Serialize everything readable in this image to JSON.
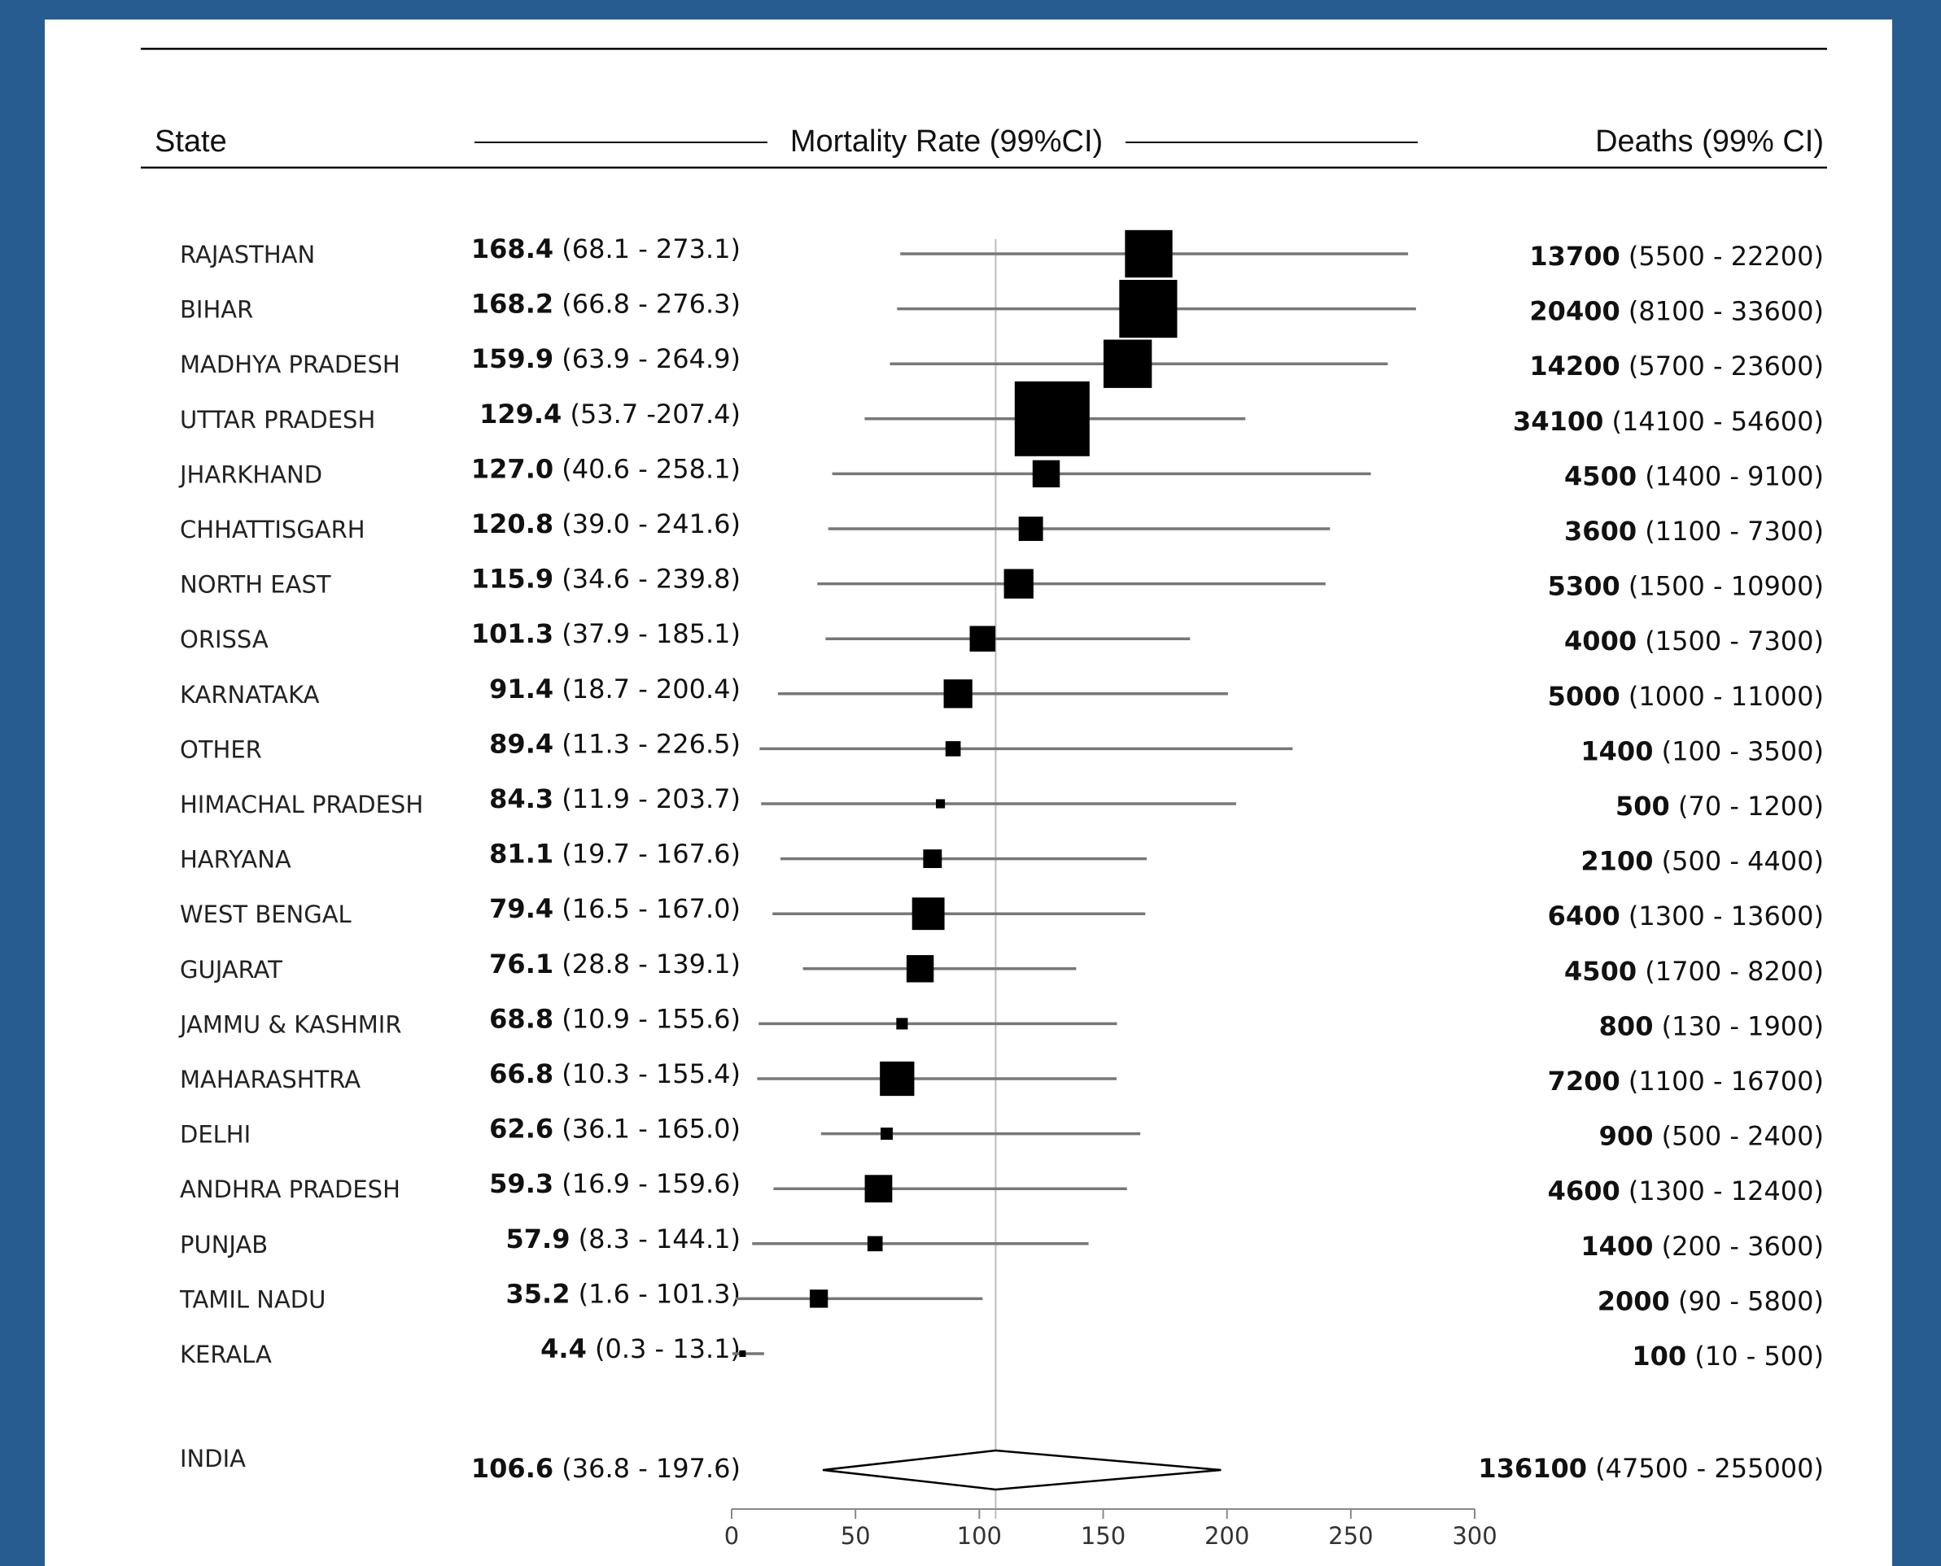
{
  "header": {
    "state_label": "State",
    "rate_label": "Mortality Rate (99%CI)",
    "deaths_label": "Deaths (99% CI)"
  },
  "colors": {
    "background": "#275c91",
    "panel": "#ffffff",
    "marker": "#000000",
    "ci_line": "#777777",
    "reference_line": "#bdbdbd"
  },
  "chart_data": {
    "type": "forest",
    "xlim": [
      0,
      300
    ],
    "xticks": [
      0,
      50,
      100,
      150,
      200,
      250,
      300
    ],
    "reference_value": 106.6,
    "rows": [
      {
        "state": "RAJASTHAN",
        "rate": 168.4,
        "rate_ci": "(68.1 - 273.1)",
        "lo": 68.1,
        "hi": 273.1,
        "deaths": 13700,
        "deaths_ci": "(5500 - 22200)"
      },
      {
        "state": "BIHAR",
        "rate": 168.2,
        "rate_ci": "(66.8 - 276.3)",
        "lo": 66.8,
        "hi": 276.3,
        "deaths": 20400,
        "deaths_ci": "(8100 - 33600)"
      },
      {
        "state": "MADHYA PRADESH",
        "rate": 159.9,
        "rate_ci": "(63.9 - 264.9)",
        "lo": 63.9,
        "hi": 264.9,
        "deaths": 14200,
        "deaths_ci": "(5700 - 23600)"
      },
      {
        "state": "UTTAR PRADESH",
        "rate": 129.4,
        "rate_ci": "(53.7 -207.4)",
        "lo": 53.7,
        "hi": 207.4,
        "deaths": 34100,
        "deaths_ci": "(14100 - 54600)"
      },
      {
        "state": "JHARKHAND",
        "rate": 127.0,
        "rate_ci": "(40.6 - 258.1)",
        "lo": 40.6,
        "hi": 258.1,
        "deaths": 4500,
        "deaths_ci": "(1400 - 9100)"
      },
      {
        "state": "CHHATTISGARH",
        "rate": 120.8,
        "rate_ci": "(39.0 - 241.6)",
        "lo": 39.0,
        "hi": 241.6,
        "deaths": 3600,
        "deaths_ci": "(1100 - 7300)"
      },
      {
        "state": "NORTH EAST",
        "rate": 115.9,
        "rate_ci": "(34.6 - 239.8)",
        "lo": 34.6,
        "hi": 239.8,
        "deaths": 5300,
        "deaths_ci": "(1500 - 10900)"
      },
      {
        "state": "ORISSA",
        "rate": 101.3,
        "rate_ci": "(37.9 - 185.1)",
        "lo": 37.9,
        "hi": 185.1,
        "deaths": 4000,
        "deaths_ci": "(1500 - 7300)"
      },
      {
        "state": "KARNATAKA",
        "rate": 91.4,
        "rate_ci": "(18.7 - 200.4)",
        "lo": 18.7,
        "hi": 200.4,
        "deaths": 5000,
        "deaths_ci": "(1000 - 11000)"
      },
      {
        "state": "OTHER",
        "rate": 89.4,
        "rate_ci": "(11.3 - 226.5)",
        "lo": 11.3,
        "hi": 226.5,
        "deaths": 1400,
        "deaths_ci": "(100 - 3500)"
      },
      {
        "state": "HIMACHAL PRADESH",
        "rate": 84.3,
        "rate_ci": "(11.9 - 203.7)",
        "lo": 11.9,
        "hi": 203.7,
        "deaths": 500,
        "deaths_ci": "(70 - 1200)"
      },
      {
        "state": "HARYANA",
        "rate": 81.1,
        "rate_ci": "(19.7 - 167.6)",
        "lo": 19.7,
        "hi": 167.6,
        "deaths": 2100,
        "deaths_ci": "(500 - 4400)"
      },
      {
        "state": "WEST BENGAL",
        "rate": 79.4,
        "rate_ci": "(16.5 - 167.0)",
        "lo": 16.5,
        "hi": 167.0,
        "deaths": 6400,
        "deaths_ci": "(1300 - 13600)"
      },
      {
        "state": "GUJARAT",
        "rate": 76.1,
        "rate_ci": "(28.8 - 139.1)",
        "lo": 28.8,
        "hi": 139.1,
        "deaths": 4500,
        "deaths_ci": "(1700 - 8200)"
      },
      {
        "state": "JAMMU & KASHMIR",
        "rate": 68.8,
        "rate_ci": "(10.9 - 155.6)",
        "lo": 10.9,
        "hi": 155.6,
        "deaths": 800,
        "deaths_ci": "(130 - 1900)"
      },
      {
        "state": "MAHARASHTRA",
        "rate": 66.8,
        "rate_ci": "(10.3 - 155.4)",
        "lo": 10.3,
        "hi": 155.4,
        "deaths": 7200,
        "deaths_ci": "(1100 - 16700)"
      },
      {
        "state": "DELHI",
        "rate": 62.6,
        "rate_ci": "(36.1 - 165.0)",
        "lo": 36.1,
        "hi": 165.0,
        "deaths": 900,
        "deaths_ci": "(500 - 2400)"
      },
      {
        "state": "ANDHRA PRADESH",
        "rate": 59.3,
        "rate_ci": "(16.9 - 159.6)",
        "lo": 16.9,
        "hi": 159.6,
        "deaths": 4600,
        "deaths_ci": "(1300 - 12400)"
      },
      {
        "state": "PUNJAB",
        "rate": 57.9,
        "rate_ci": "(8.3 - 144.1)",
        "lo": 8.3,
        "hi": 144.1,
        "deaths": 1400,
        "deaths_ci": "(200 - 3600)"
      },
      {
        "state": "TAMIL NADU",
        "rate": 35.2,
        "rate_ci": "(1.6 - 101.3)",
        "lo": 1.6,
        "hi": 101.3,
        "deaths": 2000,
        "deaths_ci": "(90 - 5800)"
      },
      {
        "state": "KERALA",
        "rate": 4.4,
        "rate_ci": "(0.3 - 13.1)",
        "lo": 0.3,
        "hi": 13.1,
        "deaths": 100,
        "deaths_ci": "(10 - 500)"
      }
    ],
    "summary": {
      "state": "INDIA",
      "rate": 106.6,
      "rate_ci": "(36.8 - 197.6)",
      "lo": 36.8,
      "hi": 197.6,
      "deaths": 136100,
      "deaths_ci": "(47500 - 255000)"
    }
  }
}
